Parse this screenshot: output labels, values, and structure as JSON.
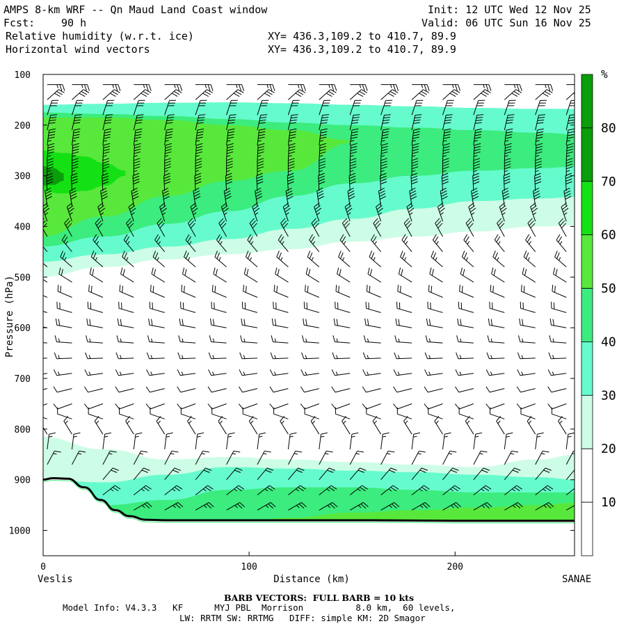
{
  "header": {
    "title": "AMPS 8-km WRF -- Qn Maud Land Coast window",
    "fcst_label": "Fcst:",
    "fcst_value": "90 h",
    "field1": "Relative humidity (w.r.t. ice)",
    "field2": "Horizontal wind vectors",
    "xy1": "XY= 436.3,109.2 to 410.7, 89.9",
    "xy2": "XY= 436.3,109.2 to 410.7, 89.9",
    "init": "Init: 12 UTC Wed 12 Nov 25",
    "valid": "Valid: 06 UTC Sun 16 Nov 25"
  },
  "footer": {
    "barb": "BARB VECTORS:  FULL BARB = 10 kts",
    "model_info": "Model Info: V4.3.3   KF      MYJ PBL  Morrison          8.0 km,  60 levels,",
    "physics": "LW: RRTM SW: RRTMG   DIFF: simple KM: 2D Smagor"
  },
  "colors": {
    "rh_30_40": "#cdfde6",
    "rh_40_50": "#66fbcd",
    "rh_50_60": "#3cec7e",
    "rh_60_70": "#58e83c",
    "rh_70_80": "#14e114",
    "rh_80_up": "#0a9e0a",
    "terrain": "#000000",
    "barb": "#000000"
  },
  "chart_data": {
    "type": "contourf",
    "xlabel": "Distance (km)",
    "ylabel": "Pressure (hPa)",
    "xlim": [
      0,
      258
    ],
    "ylim": [
      1050,
      100
    ],
    "x_ticks": [
      0,
      100,
      200
    ],
    "y_ticks": [
      100,
      200,
      300,
      400,
      500,
      600,
      700,
      800,
      900,
      1000
    ],
    "x_end_labels": [
      "Veslis",
      "SANAE"
    ],
    "colorbar": {
      "unit": "%",
      "levels": [
        10,
        20,
        30,
        40,
        50,
        60,
        70,
        80
      ],
      "colors": [
        "#ffffff",
        "#ffffff",
        "#cdfde6",
        "#66fbcd",
        "#3cec7e",
        "#58e83c",
        "#14e114",
        "#0a9e0a"
      ]
    },
    "terrain_surface": {
      "x": [
        0,
        5,
        12,
        20,
        28,
        35,
        42,
        50,
        60,
        80,
        120,
        160,
        200,
        258
      ],
      "p": [
        900,
        897,
        898,
        915,
        940,
        960,
        972,
        979,
        980,
        980,
        980,
        980,
        981,
        981
      ]
    },
    "rh_bands": {
      "x": [
        0,
        30,
        60,
        90,
        120,
        150,
        180,
        210,
        240,
        258
      ],
      "upper_moist_layer": {
        "top_p": [
          160,
          158,
          156,
          155,
          157,
          160,
          163,
          166,
          168,
          168
        ],
        "rh30_bottom_p": [
          500,
          480,
          465,
          455,
          445,
          430,
          420,
          410,
          400,
          398
        ],
        "rh40_bottom_p": [
          470,
          455,
          440,
          425,
          405,
          385,
          365,
          350,
          345,
          342
        ],
        "rh50_bottom_p": [
          440,
          420,
          395,
          370,
          340,
          315,
          300,
          290,
          285,
          282
        ],
        "rh50_top_p": [
          175,
          178,
          182,
          188,
          195,
          200,
          205,
          210,
          215,
          218
        ],
        "rh60_top_p": [
          185,
          185,
          190,
          200,
          210,
          230,
          250,
          270,
          290,
          300
        ],
        "rh60_bottom_p": [
          420,
          380,
          340,
          310,
          290,
          275,
          265,
          258,
          250,
          245
        ],
        "rh70_core": {
          "x": [
            0,
            10,
            20,
            30,
            40
          ],
          "top_p": [
            250,
            255,
            262,
            275,
            290
          ],
          "bottom_p": [
            330,
            335,
            330,
            320,
            300
          ]
        },
        "rh80_core": {
          "x": [
            0,
            5,
            10
          ],
          "top_p": [
            280,
            285,
            295
          ],
          "bottom_p": [
            320,
            318,
            310
          ]
        }
      },
      "lower_moist_layer": {
        "rh30_top_p": [
          815,
          840,
          860,
          855,
          860,
          865,
          870,
          875,
          860,
          850
        ],
        "rh40_top_p": [
          900,
          905,
          890,
          875,
          878,
          882,
          885,
          890,
          895,
          900
        ],
        "rh50_top_p": [
          940,
          950,
          940,
          920,
          915,
          915,
          920,
          925,
          925,
          925
        ],
        "rh60_top_p": [
          990,
          990,
          990,
          990,
          975,
          965,
          960,
          955,
          950,
          945
        ]
      }
    },
    "wind_barbs": {
      "note": "Wind barbs on a regular grid, full barb = 10 kts",
      "columns_x_km": [
        2,
        14,
        29,
        44,
        59,
        74,
        89,
        104,
        119,
        134,
        149,
        164,
        179,
        194,
        209,
        224,
        239,
        254
      ],
      "levels_p": [
        120,
        150,
        180,
        210,
        240,
        270,
        300,
        330,
        360,
        390,
        420,
        450,
        480,
        510,
        540,
        570,
        600,
        630,
        660,
        690,
        720,
        750,
        780,
        810,
        840,
        870,
        900,
        930,
        960
      ],
      "profile": [
        {
          "p": 120,
          "speed_kt": 25,
          "dir_deg": 90
        },
        {
          "p": 170,
          "speed_kt": 30,
          "dir_deg": 20
        },
        {
          "p": 250,
          "speed_kt": 45,
          "dir_deg": 5
        },
        {
          "p": 350,
          "speed_kt": 40,
          "dir_deg": 355
        },
        {
          "p": 450,
          "speed_kt": 25,
          "dir_deg": 320
        },
        {
          "p": 550,
          "speed_kt": 20,
          "dir_deg": 290
        },
        {
          "p": 650,
          "speed_kt": 15,
          "dir_deg": 270
        },
        {
          "p": 750,
          "speed_kt": 10,
          "dir_deg": 250
        },
        {
          "p": 850,
          "speed_kt": 15,
          "dir_deg": 20
        },
        {
          "p": 950,
          "speed_kt": 25,
          "dir_deg": 60
        }
      ]
    }
  }
}
